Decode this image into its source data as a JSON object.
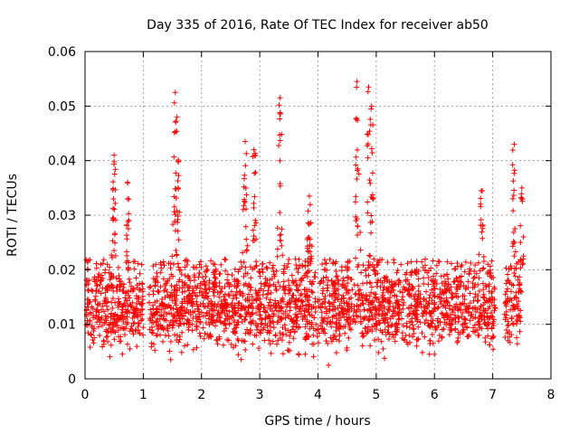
{
  "chart_data": {
    "type": "scatter",
    "title": "Day 335 of 2016, Rate Of TEC Index for receiver ab50",
    "xlabel": "GPS time / hours",
    "ylabel": "ROTI / TECUs",
    "xlim": [
      0,
      8
    ],
    "ylim": [
      0,
      0.06
    ],
    "xticks": [
      "0",
      "1",
      "2",
      "3",
      "4",
      "5",
      "6",
      "7",
      "8"
    ],
    "yticks": [
      "0",
      "0.01",
      "0.02",
      "0.03",
      "0.04",
      "0.05",
      "0.06"
    ],
    "grid": true,
    "marker": "+",
    "color": "#ff0000",
    "data_gaps_hours": [
      [
        1.0,
        1.1
      ],
      [
        7.05,
        7.2
      ]
    ],
    "notable_peaks": [
      {
        "x": 0.5,
        "y": 0.041
      },
      {
        "x": 0.73,
        "y": 0.036
      },
      {
        "x": 1.55,
        "y": 0.0525
      },
      {
        "x": 1.58,
        "y": 0.048
      },
      {
        "x": 2.75,
        "y": 0.0435
      },
      {
        "x": 2.9,
        "y": 0.042
      },
      {
        "x": 3.35,
        "y": 0.0515
      },
      {
        "x": 3.85,
        "y": 0.0335
      },
      {
        "x": 4.67,
        "y": 0.0545
      },
      {
        "x": 4.87,
        "y": 0.0535
      },
      {
        "x": 4.92,
        "y": 0.05
      },
      {
        "x": 6.82,
        "y": 0.0345
      },
      {
        "x": 7.37,
        "y": 0.043
      },
      {
        "x": 7.5,
        "y": 0.035
      }
    ],
    "series": [
      {
        "name": "ROTI",
        "note": "dense band of points mostly between 0.005 and 0.025 TECUs across 0–7.5 h"
      }
    ]
  }
}
